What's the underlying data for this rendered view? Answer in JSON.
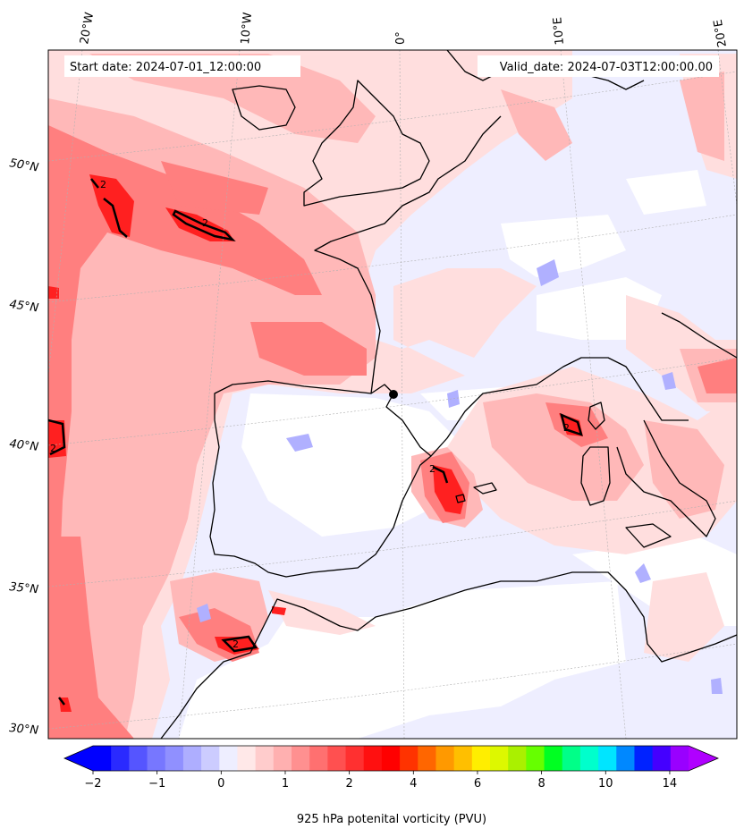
{
  "header": {
    "start_date": "Start date: 2024-07-01_12:00:00",
    "valid_date": "Valid_date: 2024-07-03T12:00:00.00"
  },
  "map": {
    "projection": "lambert-conformal",
    "variable": "potential vorticity",
    "level": "925 hPa",
    "contour_level_label": "2",
    "lon_labels": [
      "20°W",
      "10°W",
      "0°",
      "10°E",
      "20°E"
    ],
    "lat_labels": [
      "50°N",
      "45°N",
      "40°N",
      "35°N",
      "30°N"
    ],
    "coastline_color": "#000000",
    "gridline_color": "#b0b0b0"
  },
  "colorbar": {
    "label": "925 hPa potenital vorticity (PVU)",
    "tick_labels": [
      "−2",
      "−1",
      "0",
      "1",
      "2",
      "4",
      "6",
      "8",
      "10",
      "14"
    ],
    "extend": "both",
    "colors": [
      "#0000ff",
      "#2a2aff",
      "#5555ff",
      "#7777ff",
      "#9090ff",
      "#aeaeff",
      "#ccccff",
      "#eeeeff",
      "#ffe8e8",
      "#ffcccc",
      "#ffb0b0",
      "#ff9090",
      "#ff7070",
      "#ff5050",
      "#ff3030",
      "#ff1010",
      "#ff0000",
      "#ff3300",
      "#ff6600",
      "#ff9900",
      "#ffbf00",
      "#ffee00",
      "#ddf800",
      "#aaf000",
      "#66ff00",
      "#00ff22",
      "#00ff88",
      "#00ffcc",
      "#00e5ff",
      "#0088ff",
      "#0022ff",
      "#4400ff",
      "#9900ff"
    ],
    "under_color": "#0000ff",
    "over_color": "#b000ff"
  }
}
